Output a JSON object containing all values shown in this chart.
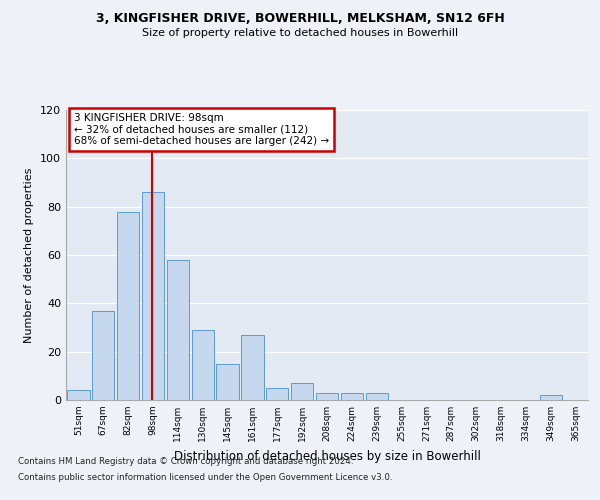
{
  "title1": "3, KINGFISHER DRIVE, BOWERHILL, MELKSHAM, SN12 6FH",
  "title2": "Size of property relative to detached houses in Bowerhill",
  "xlabel": "Distribution of detached houses by size in Bowerhill",
  "ylabel": "Number of detached properties",
  "categories": [
    "51sqm",
    "67sqm",
    "82sqm",
    "98sqm",
    "114sqm",
    "130sqm",
    "145sqm",
    "161sqm",
    "177sqm",
    "192sqm",
    "208sqm",
    "224sqm",
    "239sqm",
    "255sqm",
    "271sqm",
    "287sqm",
    "302sqm",
    "318sqm",
    "334sqm",
    "349sqm",
    "365sqm"
  ],
  "bar_values": [
    4,
    37,
    78,
    86,
    58,
    29,
    15,
    27,
    5,
    7,
    3,
    3,
    3,
    0,
    0,
    0,
    0,
    0,
    0,
    2,
    0
  ],
  "bar_color": "#c5d8ed",
  "bar_edge_color": "#5b9bd5",
  "annotation_title": "3 KINGFISHER DRIVE: 98sqm",
  "annotation_line1": "← 32% of detached houses are smaller (112)",
  "annotation_line2": "68% of semi-detached houses are larger (242) →",
  "annotation_box_color": "#ffffff",
  "annotation_box_edge": "#cc0000",
  "vline_color": "#cc0000",
  "ylim": [
    0,
    120
  ],
  "yticks": [
    0,
    20,
    40,
    60,
    80,
    100,
    120
  ],
  "footer1": "Contains HM Land Registry data © Crown copyright and database right 2024.",
  "footer2": "Contains public sector information licensed under the Open Government Licence v3.0.",
  "background_color": "#eef2f8",
  "plot_background": "#e4eaf4"
}
